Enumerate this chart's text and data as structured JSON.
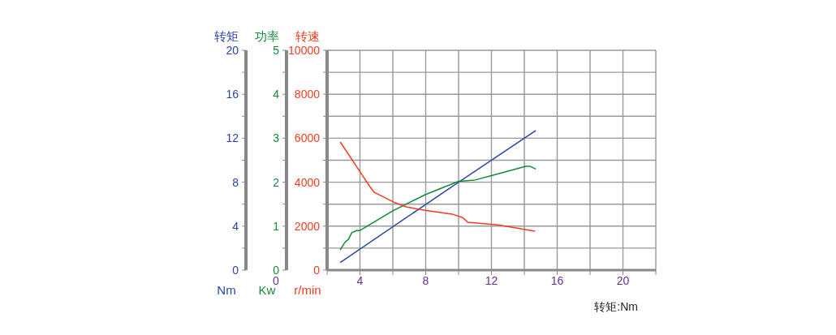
{
  "chart_data": {
    "type": "line",
    "xlabel": "转矩:Nm",
    "ylabel": "转矩 Nm",
    "y2label": "功率 Kw",
    "y3label": "转速 r/min",
    "annotations": [
      "0"
    ],
    "xlim": [
      2,
      22
    ],
    "xticks": [
      {
        "value": 2,
        "label": null
      },
      4,
      {
        "value": 6,
        "label": null
      },
      8,
      {
        "value": 10,
        "label": null
      },
      12,
      {
        "value": 14,
        "label": null
      },
      16,
      {
        "value": 18,
        "label": null
      },
      20,
      {
        "value": 22,
        "label": null
      }
    ],
    "ylim": [
      0,
      20
    ],
    "yticks": [
      0,
      {
        "value": 2,
        "label": null
      },
      4,
      {
        "value": 6,
        "label": null
      },
      8,
      {
        "value": 10,
        "label": null
      },
      12,
      {
        "value": 14,
        "label": null
      },
      16,
      {
        "value": 18,
        "label": null
      },
      20
    ],
    "y2lim": [
      0,
      5
    ],
    "y2ticks": [
      0,
      {
        "value": 0.5,
        "label": null
      },
      1,
      {
        "value": 1.5,
        "label": null
      },
      2,
      {
        "value": 2.5,
        "label": null
      },
      3,
      {
        "value": 3.5,
        "label": null
      },
      4,
      {
        "value": 4.5,
        "label": null
      },
      5
    ],
    "y3lim": [
      0,
      10000
    ],
    "y3ticks": [
      0,
      {
        "value": 1000,
        "label": null
      },
      2000,
      {
        "value": 3000,
        "label": null
      },
      4000,
      {
        "value": 5000,
        "label": null
      },
      6000,
      {
        "value": 7000,
        "label": null
      },
      8000,
      {
        "value": 9000,
        "label": null
      },
      10000
    ],
    "grid": true,
    "legend": false,
    "marker": "none",
    "line_style": "solid",
    "series": [
      {
        "color": "#2b44a8",
        "axis": "y",
        "x": [
          2.8,
          10.0,
          14.7
        ],
        "values": [
          0.7,
          8.0,
          12.7
        ]
      },
      {
        "color": "#138a3a",
        "axis": "y2",
        "x": [
          2.8,
          2.95,
          3.1,
          3.3,
          3.5,
          3.8,
          4.0,
          6.0,
          8.0,
          10.0,
          11.0,
          12.0,
          14.1,
          14.35,
          14.7
        ],
        "values": [
          0.46,
          0.55,
          0.64,
          0.7,
          0.85,
          0.9,
          0.9,
          1.35,
          1.72,
          2.02,
          2.05,
          2.15,
          2.36,
          2.36,
          2.3
        ]
      },
      {
        "color": "#f23c1e",
        "axis": "y3",
        "x": [
          2.8,
          4.0,
          4.6,
          4.85,
          6.15,
          6.8,
          7.95,
          9.6,
          10.25,
          10.55,
          12.4,
          14.65
        ],
        "values": [
          5830,
          4480,
          3800,
          3550,
          3060,
          2880,
          2720,
          2550,
          2390,
          2180,
          2060,
          1770
        ]
      }
    ]
  }
}
